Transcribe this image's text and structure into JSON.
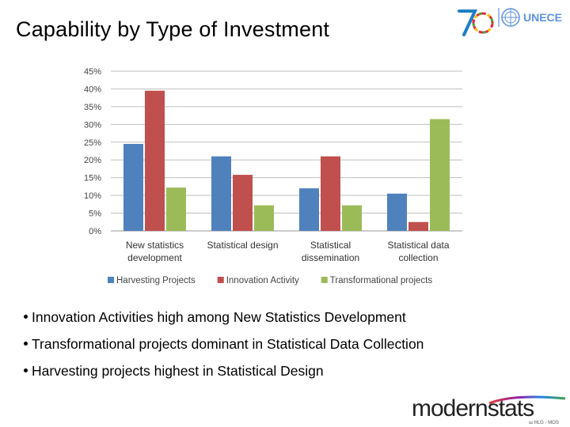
{
  "title": "Capability by Type of Investment",
  "logos": {
    "seventy": "70",
    "unece": "UNECE",
    "modernstats": "modernstats",
    "modernstats_sub": "ш HLG - MOS"
  },
  "chart_data": {
    "type": "bar",
    "title": "",
    "xlabel": "",
    "ylabel": "",
    "ylim": [
      0,
      45
    ],
    "yticks": [
      "0%",
      "5%",
      "10%",
      "15%",
      "20%",
      "25%",
      "30%",
      "35%",
      "40%",
      "45%"
    ],
    "grid": true,
    "legend_position": "bottom",
    "categories": [
      [
        "New statistics",
        "development"
      ],
      [
        "Statistical design"
      ],
      [
        "Statistical",
        "dissemination"
      ],
      [
        "Statistical data",
        "collection"
      ]
    ],
    "series": [
      {
        "name": "Harvesting Projects",
        "color": "#4f81bd",
        "values": [
          24.5,
          21,
          12,
          10.5
        ]
      },
      {
        "name": "Innovation Activity",
        "color": "#c0504d",
        "values": [
          39.5,
          15.8,
          21,
          2.5
        ]
      },
      {
        "name": "Transformational projects",
        "color": "#9bbb59",
        "values": [
          12.2,
          7.2,
          7.2,
          31.5
        ]
      }
    ]
  },
  "bullets": [
    "Innovation Activities high among New Statistics Development",
    "Transformational projects dominant in Statistical Data Collection",
    "Harvesting projects highest in Statistical Design"
  ]
}
